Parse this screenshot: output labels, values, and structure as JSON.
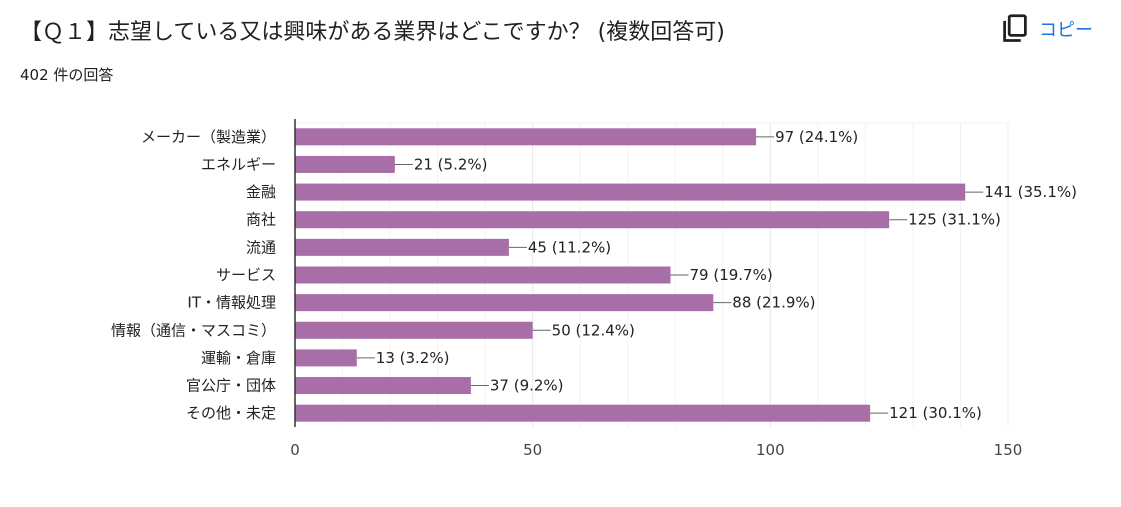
{
  "header": {
    "title": "【Ｑ１】志望している又は興味がある業界はどこですか？ (複数回答可)",
    "response_count": "402 件の回答",
    "copy_label": "コピー",
    "copy_icon": "copy-icon"
  },
  "colors": {
    "bar": "#a76ea8",
    "accent": "#1a73e8",
    "grid": "#ebebeb",
    "axis": "#333333"
  },
  "chart_data": {
    "type": "bar",
    "orientation": "horizontal",
    "categories": [
      "メーカー（製造業）",
      "エネルギー",
      "金融",
      "商社",
      "流通",
      "サービス",
      "IT・情報処理",
      "情報（通信・マスコミ）",
      "運輸・倉庫",
      "官公庁・団体",
      "その他・未定"
    ],
    "values": [
      97,
      21,
      141,
      125,
      45,
      79,
      88,
      50,
      13,
      37,
      121
    ],
    "data_labels": [
      "97 (24.1%)",
      "21 (5.2%)",
      "141 (35.1%)",
      "125 (31.1%)",
      "45 (11.2%)",
      "79 (19.7%)",
      "88 (21.9%)",
      "50 (12.4%)",
      "13 (3.2%)",
      "37 (9.2%)",
      "121 (30.1%)"
    ],
    "xlim": [
      0,
      150
    ],
    "x_ticks": [
      0,
      50,
      100,
      150
    ],
    "grid": true,
    "legend": "none"
  }
}
